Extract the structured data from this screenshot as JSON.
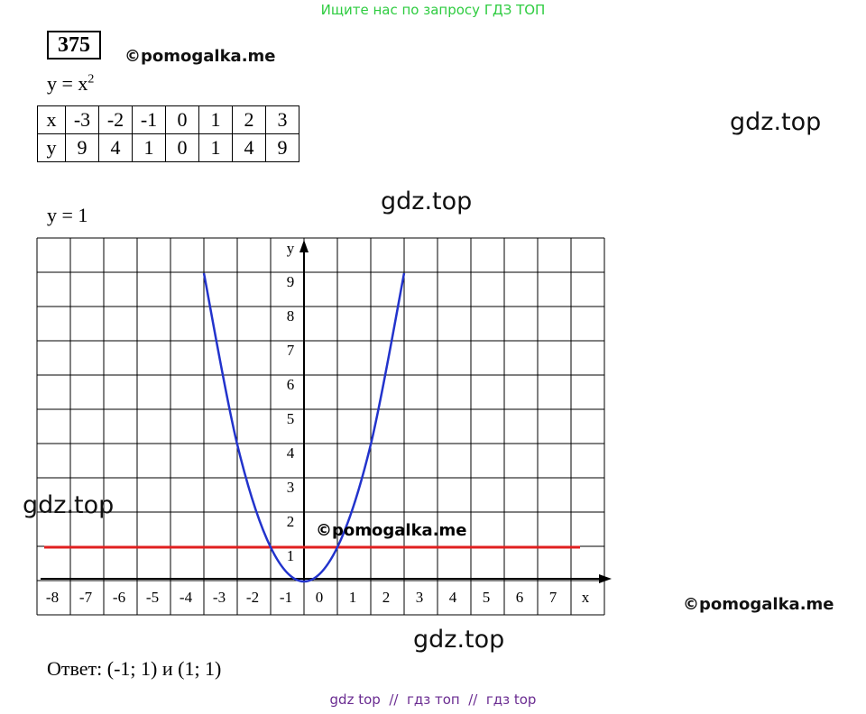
{
  "banner": "Ищите нас по запросу ГДЗ ТОП",
  "problem_number": "375",
  "copyright": "©pomogalka.me",
  "formula": {
    "base": "y = x",
    "sup": "2"
  },
  "table": {
    "rows": [
      [
        "x",
        "-3",
        "-2",
        "-1",
        "0",
        "1",
        "2",
        "3"
      ],
      [
        "y",
        "9",
        "4",
        "1",
        "0",
        "1",
        "4",
        "9"
      ]
    ]
  },
  "watermarks": [
    "gdz.top",
    "gdz.top",
    "gdz.top",
    "gdz.top"
  ],
  "line": {
    "text": "y = 1",
    "y": 1
  },
  "graph": {
    "x_ticks": [
      -8,
      -7,
      -6,
      -5,
      -4,
      -3,
      -2,
      -1,
      0,
      1,
      2,
      3,
      4,
      5,
      6,
      7
    ],
    "x_label": "x",
    "y_ticks": [
      1,
      2,
      3,
      4,
      5,
      6,
      7,
      8,
      9
    ],
    "y_label": "y",
    "copyright": "©pomogalka.me"
  },
  "side_copyright": "©pomogalka.me",
  "answer": "Ответ: (-1; 1) и (1; 1)",
  "footer": "gdz top  //  гдз топ  //  гдз top"
}
